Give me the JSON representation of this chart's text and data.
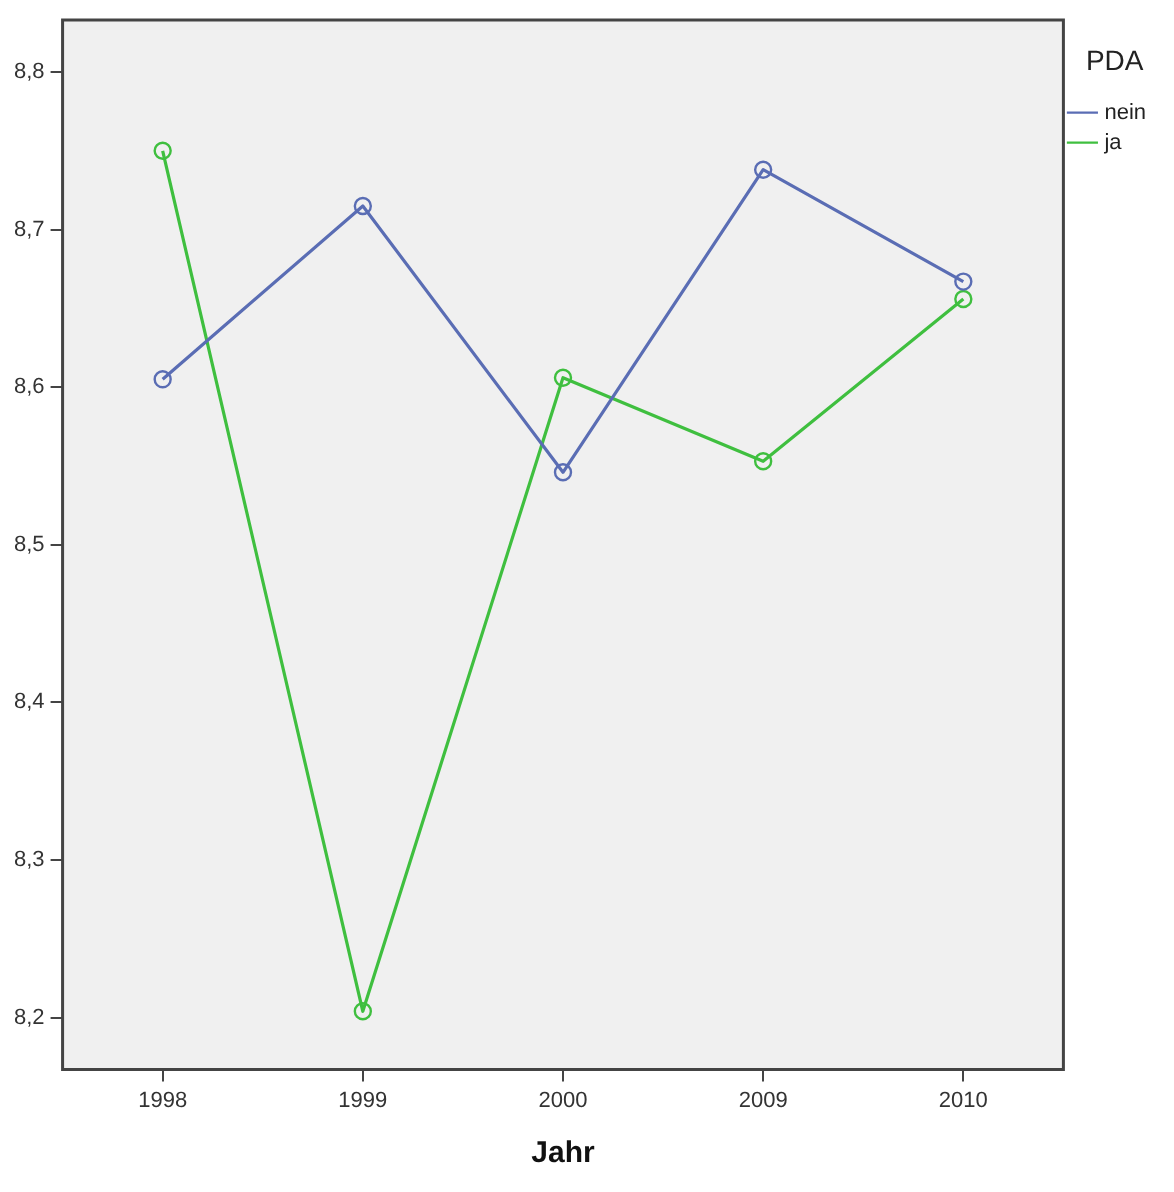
{
  "chart_data": {
    "type": "line",
    "xlabel": "Jahr",
    "legend_title": "PDA",
    "categories": [
      "1998",
      "1999",
      "2000",
      "2009",
      "2010"
    ],
    "series": [
      {
        "name": "nein",
        "color": "#5a6db4",
        "values": [
          8.605,
          8.715,
          8.546,
          8.738,
          8.667
        ]
      },
      {
        "name": "ja",
        "color": "#3fbf3f",
        "values": [
          8.75,
          8.204,
          8.606,
          8.553,
          8.656
        ]
      }
    ],
    "ylim": [
      8.167,
      8.833
    ],
    "yticks": [
      {
        "value": 8.2,
        "label": "8,2"
      },
      {
        "value": 8.3,
        "label": "8,3"
      },
      {
        "value": 8.4,
        "label": "8,4"
      },
      {
        "value": 8.5,
        "label": "8,5"
      },
      {
        "value": 8.6,
        "label": "8,6"
      },
      {
        "value": 8.7,
        "label": "8,7"
      },
      {
        "value": 8.8,
        "label": "8,8"
      }
    ],
    "grid": false,
    "legend": "top right",
    "marker": "circle",
    "line_style": "solid"
  }
}
